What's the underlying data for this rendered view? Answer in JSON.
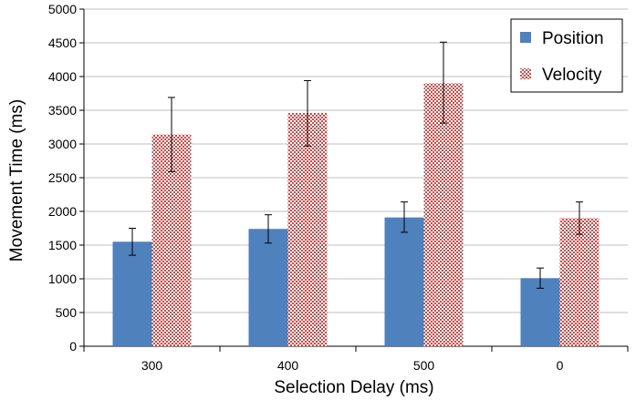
{
  "chart_data": {
    "type": "bar",
    "title": "",
    "xlabel": "Selection Delay (ms)",
    "ylabel": "Movement Time (ms)",
    "ylim": [
      0,
      5000
    ],
    "y_ticks": [
      "0",
      "500",
      "1000",
      "1500",
      "2000",
      "2500",
      "3000",
      "3500",
      "4000",
      "4500",
      "5000"
    ],
    "y_tick_values": [
      0,
      500,
      1000,
      1500,
      2000,
      2500,
      3000,
      3500,
      4000,
      4500,
      5000
    ],
    "categories": [
      "300",
      "400",
      "500",
      "0"
    ],
    "grid": true,
    "legend_position": "top-right",
    "series": [
      {
        "name": "Position",
        "values": [
          1550,
          1740,
          1910,
          1010
        ],
        "error_low": [
          1350,
          1530,
          1690,
          860
        ],
        "error_high": [
          1750,
          1950,
          2140,
          1160
        ],
        "color": "#4f81bd",
        "pattern": "solid"
      },
      {
        "name": "Velocity",
        "values": [
          3140,
          3460,
          3900,
          1900
        ],
        "error_low": [
          2590,
          2970,
          3310,
          1660
        ],
        "error_high": [
          3690,
          3940,
          4510,
          2140
        ],
        "color": "#c0504d",
        "pattern": "checker"
      }
    ]
  }
}
